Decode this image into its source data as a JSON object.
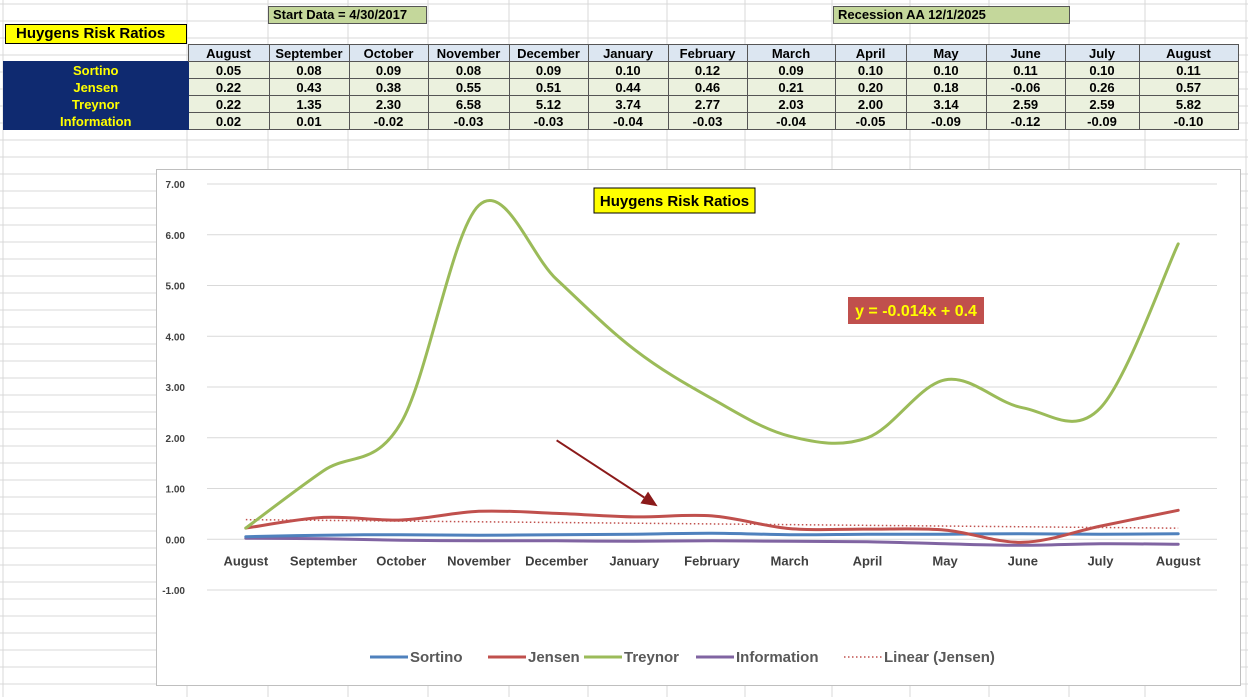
{
  "sheet": {
    "title": "Huygens Risk Ratios",
    "start_note": "Start Data = 4/30/2017",
    "recession_note": "Recession AA 12/1/2025",
    "months": [
      "August",
      "September",
      "October",
      "November",
      "December",
      "January",
      "February",
      "March",
      "April",
      "May",
      "June",
      "July",
      "August"
    ],
    "rows": [
      {
        "label": "Sortino",
        "values": [
          "0.05",
          "0.08",
          "0.09",
          "0.08",
          "0.09",
          "0.10",
          "0.12",
          "0.09",
          "0.10",
          "0.10",
          "0.11",
          "0.10",
          "0.11"
        ]
      },
      {
        "label": "Jensen",
        "values": [
          "0.22",
          "0.43",
          "0.38",
          "0.55",
          "0.51",
          "0.44",
          "0.46",
          "0.21",
          "0.20",
          "0.18",
          "-0.06",
          "0.26",
          "0.57"
        ]
      },
      {
        "label": "Treynor",
        "values": [
          "0.22",
          "1.35",
          "2.30",
          "6.58",
          "5.12",
          "3.74",
          "2.77",
          "2.03",
          "2.00",
          "3.14",
          "2.59",
          "2.59",
          "5.82"
        ]
      },
      {
        "label": "Information",
        "values": [
          "0.02",
          "0.01",
          "-0.02",
          "-0.03",
          "-0.03",
          "-0.04",
          "-0.03",
          "-0.04",
          "-0.05",
          "-0.09",
          "-0.12",
          "-0.09",
          "-0.10"
        ]
      }
    ]
  },
  "chart_data": {
    "type": "line",
    "title": "Huygens Risk Ratios",
    "categories": [
      "August",
      "September",
      "October",
      "November",
      "December",
      "January",
      "February",
      "March",
      "April",
      "May",
      "June",
      "July",
      "August"
    ],
    "series": [
      {
        "name": "Sortino",
        "color": "#4f81bd",
        "values": [
          0.05,
          0.08,
          0.09,
          0.08,
          0.09,
          0.1,
          0.12,
          0.09,
          0.1,
          0.1,
          0.11,
          0.1,
          0.11
        ]
      },
      {
        "name": "Jensen",
        "color": "#c0504d",
        "values": [
          0.22,
          0.43,
          0.38,
          0.55,
          0.51,
          0.44,
          0.46,
          0.21,
          0.2,
          0.18,
          -0.06,
          0.26,
          0.57
        ]
      },
      {
        "name": "Treynor",
        "color": "#9bbb59",
        "values": [
          0.22,
          1.35,
          2.3,
          6.58,
          5.12,
          3.74,
          2.77,
          2.03,
          2.0,
          3.14,
          2.59,
          2.59,
          5.82
        ]
      },
      {
        "name": "Information",
        "color": "#8064a2",
        "values": [
          0.02,
          0.01,
          -0.02,
          -0.03,
          -0.03,
          -0.04,
          -0.03,
          -0.04,
          -0.05,
          -0.09,
          -0.12,
          -0.09,
          -0.1
        ]
      }
    ],
    "trendline": {
      "name": "Linear (Jensen)",
      "color": "#c0504d",
      "style": "dotted",
      "slope": -0.014,
      "intercept": 0.4
    },
    "equation_label": "y = -0.014x + 0.4",
    "ylim": [
      -1.0,
      7.0
    ],
    "yticks": [
      "7.00",
      "6.00",
      "5.00",
      "4.00",
      "3.00",
      "2.00",
      "1.00",
      "0.00",
      "-1.00"
    ],
    "grid": true,
    "legend_position": "bottom",
    "annotation": {
      "type": "arrow",
      "color": "#8b1a1a",
      "from": [
        4.0,
        1.95
      ],
      "to": [
        5.3,
        0.65
      ]
    }
  }
}
